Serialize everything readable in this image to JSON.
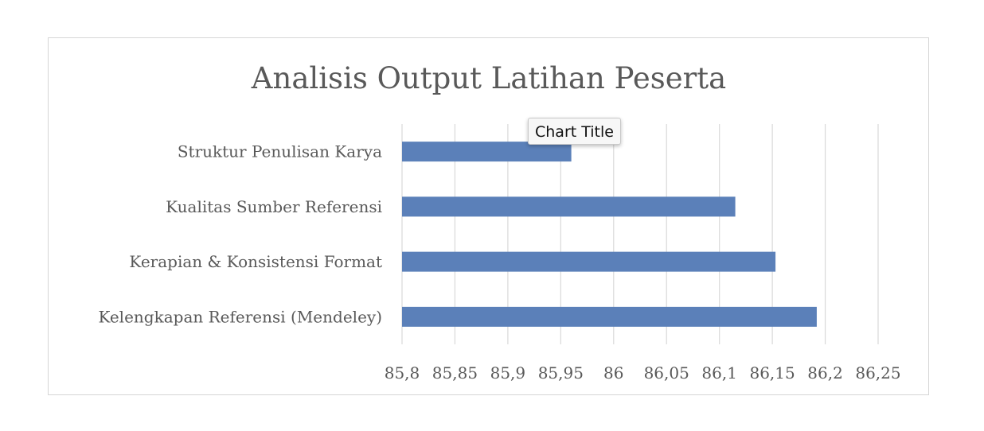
{
  "chart_data": {
    "type": "bar",
    "orientation": "horizontal",
    "title": "Analisis Output Latihan Peserta",
    "categories": [
      "Struktur Penulisan Karya",
      "Kualitas Sumber Referensi",
      "Kerapian & Konsistensi Format",
      "Kelengkapan Referensi (Mendeley)"
    ],
    "values": [
      85.96,
      86.115,
      86.153,
      86.192
    ],
    "xlim": [
      85.8,
      86.25
    ],
    "xticks": [
      "85,8",
      "85,85",
      "85,9",
      "85,95",
      "86",
      "86,05",
      "86,1",
      "86,15",
      "86,2",
      "86,25"
    ],
    "xtick_values": [
      85.8,
      85.85,
      85.9,
      85.95,
      86.0,
      86.05,
      86.1,
      86.15,
      86.2,
      86.25
    ],
    "grid": "vertical",
    "legend": "none",
    "bar_color": "#5b80b9"
  },
  "tooltip": {
    "text": "Chart Title"
  }
}
